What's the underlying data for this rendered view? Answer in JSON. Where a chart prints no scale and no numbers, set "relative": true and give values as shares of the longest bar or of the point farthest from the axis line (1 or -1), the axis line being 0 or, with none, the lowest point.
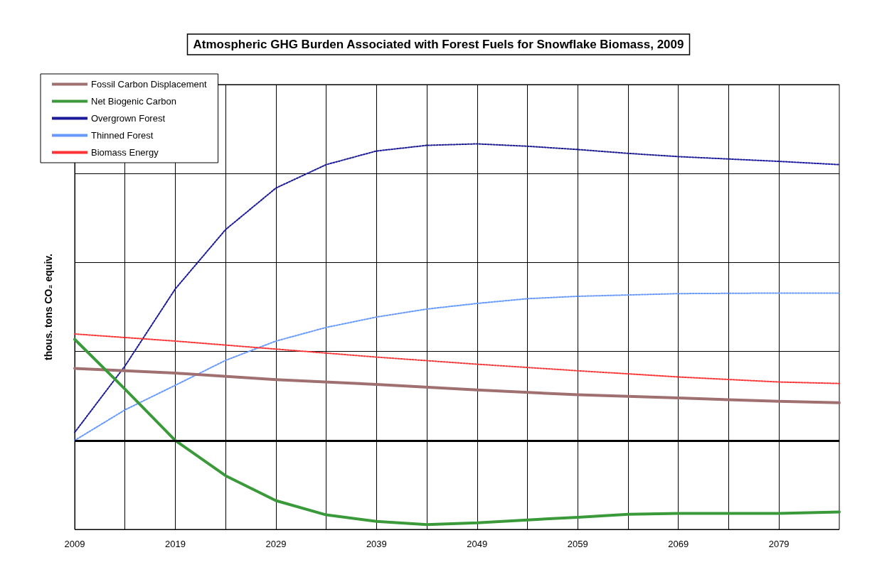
{
  "chart_data": {
    "type": "line",
    "title": "Atmospheric GHG Burden Associated with Forest Fuels for Snowflake Biomass, 2009",
    "ylabel": "thous. tons CO₂ equiv.",
    "relative": true,
    "xlim": [
      2009,
      2085
    ],
    "xticks": [
      2009,
      {
        "value": 2014,
        "label": null
      },
      2019,
      {
        "value": 2024,
        "label": null
      },
      2029,
      {
        "value": 2034,
        "label": null
      },
      2039,
      {
        "value": 2044,
        "label": null
      },
      2049,
      {
        "value": 2054,
        "label": null
      },
      2059,
      {
        "value": 2064,
        "label": null
      },
      2069,
      {
        "value": 2074,
        "label": null
      },
      2079
    ],
    "grid": true,
    "legend": "top left",
    "marker": "none",
    "ref_lines": [
      {
        "axis": "y",
        "value": 0,
        "color": "#000000"
      }
    ],
    "series": [
      {
        "name": "Fossil Carbon Displacement",
        "color": "#a07070",
        "line_style": "solid",
        "x": [
          2009,
          2019,
          2029,
          2039,
          2049,
          2059,
          2069,
          2079,
          2085
        ],
        "values": [
          0.243,
          0.227,
          0.205,
          0.189,
          0.17,
          0.154,
          0.143,
          0.132,
          0.127
        ]
      },
      {
        "name": "Net Biogenic Carbon",
        "color": "#3a9a3a",
        "line_style": "solid",
        "x": [
          2009,
          2014,
          2019,
          2024,
          2029,
          2034,
          2039,
          2044,
          2049,
          2054,
          2059,
          2064,
          2069,
          2079,
          2085
        ],
        "values": [
          0.341,
          0.173,
          0,
          -0.119,
          -0.203,
          -0.251,
          -0.273,
          -0.284,
          -0.278,
          -0.268,
          -0.259,
          -0.249,
          -0.246,
          -0.246,
          -0.241
        ]
      },
      {
        "name": "Overgrown Forest",
        "color": "#1a1a9a",
        "line_style": "dotted",
        "x": [
          2009,
          2014,
          2019,
          2024,
          2029,
          2034,
          2039,
          2044,
          2049,
          2054,
          2059,
          2064,
          2069,
          2079,
          2085
        ],
        "values": [
          0.027,
          0.251,
          0.511,
          0.711,
          0.851,
          0.93,
          0.976,
          0.995,
          1,
          0.992,
          0.981,
          0.968,
          0.957,
          0.941,
          0.93
        ]
      },
      {
        "name": "Thinned Forest",
        "color": "#6699ff",
        "line_style": "dotted",
        "x": [
          2009,
          2014,
          2019,
          2024,
          2029,
          2034,
          2039,
          2044,
          2049,
          2054,
          2059,
          2069,
          2079,
          2085
        ],
        "values": [
          0,
          0.103,
          0.186,
          0.27,
          0.335,
          0.381,
          0.416,
          0.443,
          0.462,
          0.478,
          0.486,
          0.495,
          0.497,
          0.497
        ]
      },
      {
        "name": "Biomass Energy",
        "color": "#ff3333",
        "line_style": "dotted",
        "x": [
          2009,
          2019,
          2029,
          2039,
          2049,
          2059,
          2069,
          2079,
          2085
        ],
        "values": [
          0.359,
          0.335,
          0.308,
          0.281,
          0.257,
          0.235,
          0.214,
          0.197,
          0.192
        ]
      }
    ]
  }
}
